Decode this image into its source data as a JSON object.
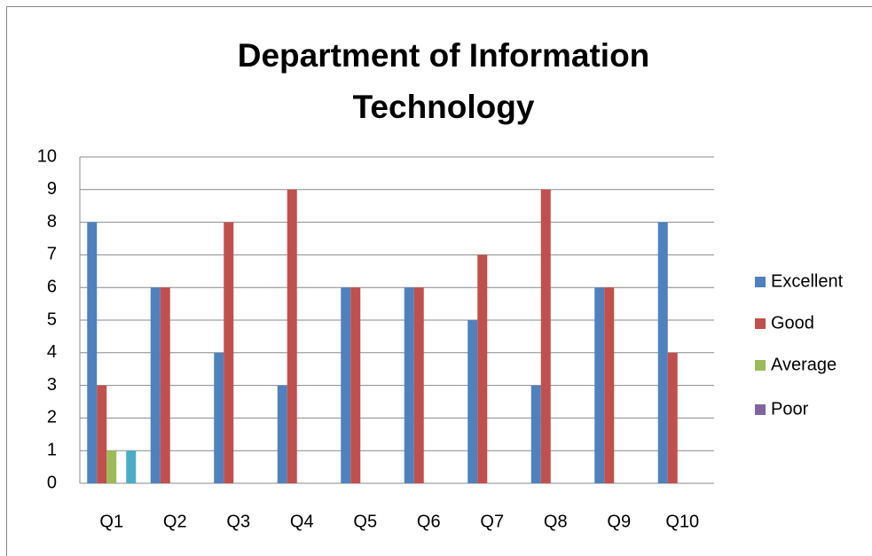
{
  "chart_data": {
    "type": "bar",
    "title": "Department of Information Technology",
    "categories": [
      "Q1",
      "Q2",
      "Q3",
      "Q4",
      "Q5",
      "Q6",
      "Q7",
      "Q8",
      "Q9",
      "Q10"
    ],
    "series": [
      {
        "name": "Excellent",
        "color": "#4f81bd",
        "values": [
          8,
          6,
          4,
          3,
          6,
          6,
          5,
          3,
          6,
          8
        ]
      },
      {
        "name": "Good",
        "color": "#c0504d",
        "values": [
          3,
          6,
          8,
          9,
          6,
          6,
          7,
          9,
          6,
          4
        ]
      },
      {
        "name": "Average",
        "color": "#9bbb59",
        "values": [
          1,
          0,
          0,
          0,
          0,
          0,
          0,
          0,
          0,
          0
        ]
      },
      {
        "name": "Poor",
        "color": "#8064a2",
        "values": [
          0,
          0,
          0,
          0,
          0,
          0,
          0,
          0,
          0,
          0
        ]
      },
      {
        "color": "#4bacc6",
        "values": [
          1,
          0,
          0,
          0,
          0,
          0,
          0,
          0,
          0,
          0
        ]
      }
    ],
    "ylim": [
      0,
      10
    ],
    "yticks": [
      0,
      1,
      2,
      3,
      4,
      5,
      6,
      7,
      8,
      9,
      10
    ],
    "grid": true,
    "legend": "right"
  }
}
